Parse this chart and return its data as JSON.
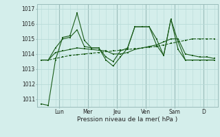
{
  "background_color": "#d4eeeb",
  "grid_color": "#b8dbd8",
  "line_color": "#1a5c1a",
  "xlabel": "Pression niveau de la mer( hPa )",
  "ylim": [
    1010.5,
    1017.3
  ],
  "yticks": [
    1011,
    1012,
    1013,
    1014,
    1015,
    1016,
    1017
  ],
  "x_day_labels": [
    "Lun",
    "Mer",
    "Jeu",
    "Ven",
    "Sam",
    "D"
  ],
  "x_day_positions": [
    3,
    7,
    11,
    15,
    19,
    23
  ],
  "n_points": 25,
  "series": [
    [
      1010.7,
      1010.6,
      1013.6,
      1015.1,
      1015.2,
      1016.7,
      1014.9,
      1014.4,
      1014.4,
      1013.6,
      1013.2,
      1013.8,
      1014.4,
      1015.8,
      1015.8,
      1015.8,
      1014.6,
      1013.9,
      1016.3,
      1014.3,
      1013.6,
      1013.6,
      1013.6,
      1013.6,
      1013.6
    ],
    [
      1013.6,
      1013.6,
      1013.7,
      1013.8,
      1013.9,
      1013.95,
      1014.0,
      1014.05,
      1014.1,
      1014.15,
      1014.2,
      1014.25,
      1014.3,
      1014.35,
      1014.4,
      1014.45,
      1014.5,
      1014.6,
      1014.7,
      1014.8,
      1014.9,
      1015.0,
      1015.0,
      1015.0,
      1015.0
    ],
    [
      1013.6,
      1013.6,
      1014.4,
      1015.0,
      1015.1,
      1015.6,
      1014.5,
      1014.4,
      1014.4,
      1013.8,
      1013.5,
      1014.2,
      1014.4,
      1015.8,
      1015.8,
      1015.8,
      1015.0,
      1013.9,
      1016.3,
      1014.8,
      1013.6,
      1013.6,
      1013.6,
      1013.6,
      1013.6
    ],
    [
      1013.6,
      1013.6,
      1014.1,
      1014.2,
      1014.3,
      1014.4,
      1014.35,
      1014.3,
      1014.25,
      1014.2,
      1014.0,
      1014.0,
      1014.1,
      1014.3,
      1014.4,
      1014.5,
      1014.6,
      1014.8,
      1015.0,
      1015.0,
      1014.0,
      1013.9,
      1013.8,
      1013.8,
      1013.7
    ]
  ],
  "series_styles": [
    {
      "lw": 0.8,
      "marker": "s",
      "ms": 1.8,
      "ls": "-"
    },
    {
      "lw": 0.8,
      "marker": "s",
      "ms": 1.5,
      "ls": "--"
    },
    {
      "lw": 0.8,
      "marker": "s",
      "ms": 1.8,
      "ls": "-"
    },
    {
      "lw": 0.8,
      "marker": "s",
      "ms": 1.5,
      "ls": "-"
    }
  ]
}
